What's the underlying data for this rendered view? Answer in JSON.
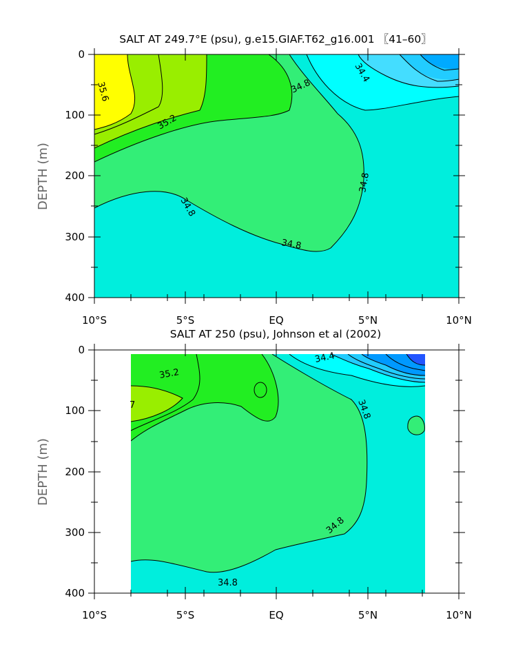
{
  "chart_data": [
    {
      "type": "contour",
      "title": "SALT AT 249.7°E (psu), g.e15.GIAF.T62_g16.001 〖41–60〗",
      "ylabel": "DEPTH (m)",
      "xlabel": "",
      "xlim": [
        -10,
        10
      ],
      "ylim": [
        400,
        0
      ],
      "x_ticks": [
        "10°S",
        "5°S",
        "EQ",
        "5°N",
        "10°N"
      ],
      "y_ticks": [
        "0",
        "100",
        "200",
        "300",
        "400"
      ],
      "contour_labels": [
        "35.6",
        "35.2",
        "34.8",
        "34.4",
        "34.8",
        "34.8",
        "34.8"
      ],
      "colors": {
        "yellow": "#ffff00",
        "yellowgreen": "#99ee00",
        "green": "#22ee22",
        "lightgreen": "#33ee77",
        "cyan": "#00eedd",
        "aqua": "#00ffff",
        "lightblue": "#44ddff",
        "blue": "#00aaff"
      }
    },
    {
      "type": "contour",
      "title": "SALT AT 250 (psu), Johnson et al (2002)",
      "ylabel": "DEPTH (m)",
      "xlabel": "",
      "xlim": [
        -10,
        10
      ],
      "ylim": [
        400,
        0
      ],
      "data_xlim": [
        -8,
        8.2
      ],
      "x_ticks": [
        "10°S",
        "5°S",
        "EQ",
        "5°N",
        "10°N"
      ],
      "y_ticks": [
        "0",
        "100",
        "200",
        "300",
        "400"
      ],
      "contour_labels": [
        "35.2",
        "34.4",
        "34.8",
        "34.8",
        "34.8"
      ],
      "colors": {
        "yellowgreen": "#99ee00",
        "green": "#22ee22",
        "lightgreen": "#33ee77",
        "cyan": "#00eedd",
        "aqua": "#00ffff",
        "lightblue": "#22ccff",
        "blue": "#0099ff",
        "darkblue": "#2255ff"
      }
    }
  ]
}
